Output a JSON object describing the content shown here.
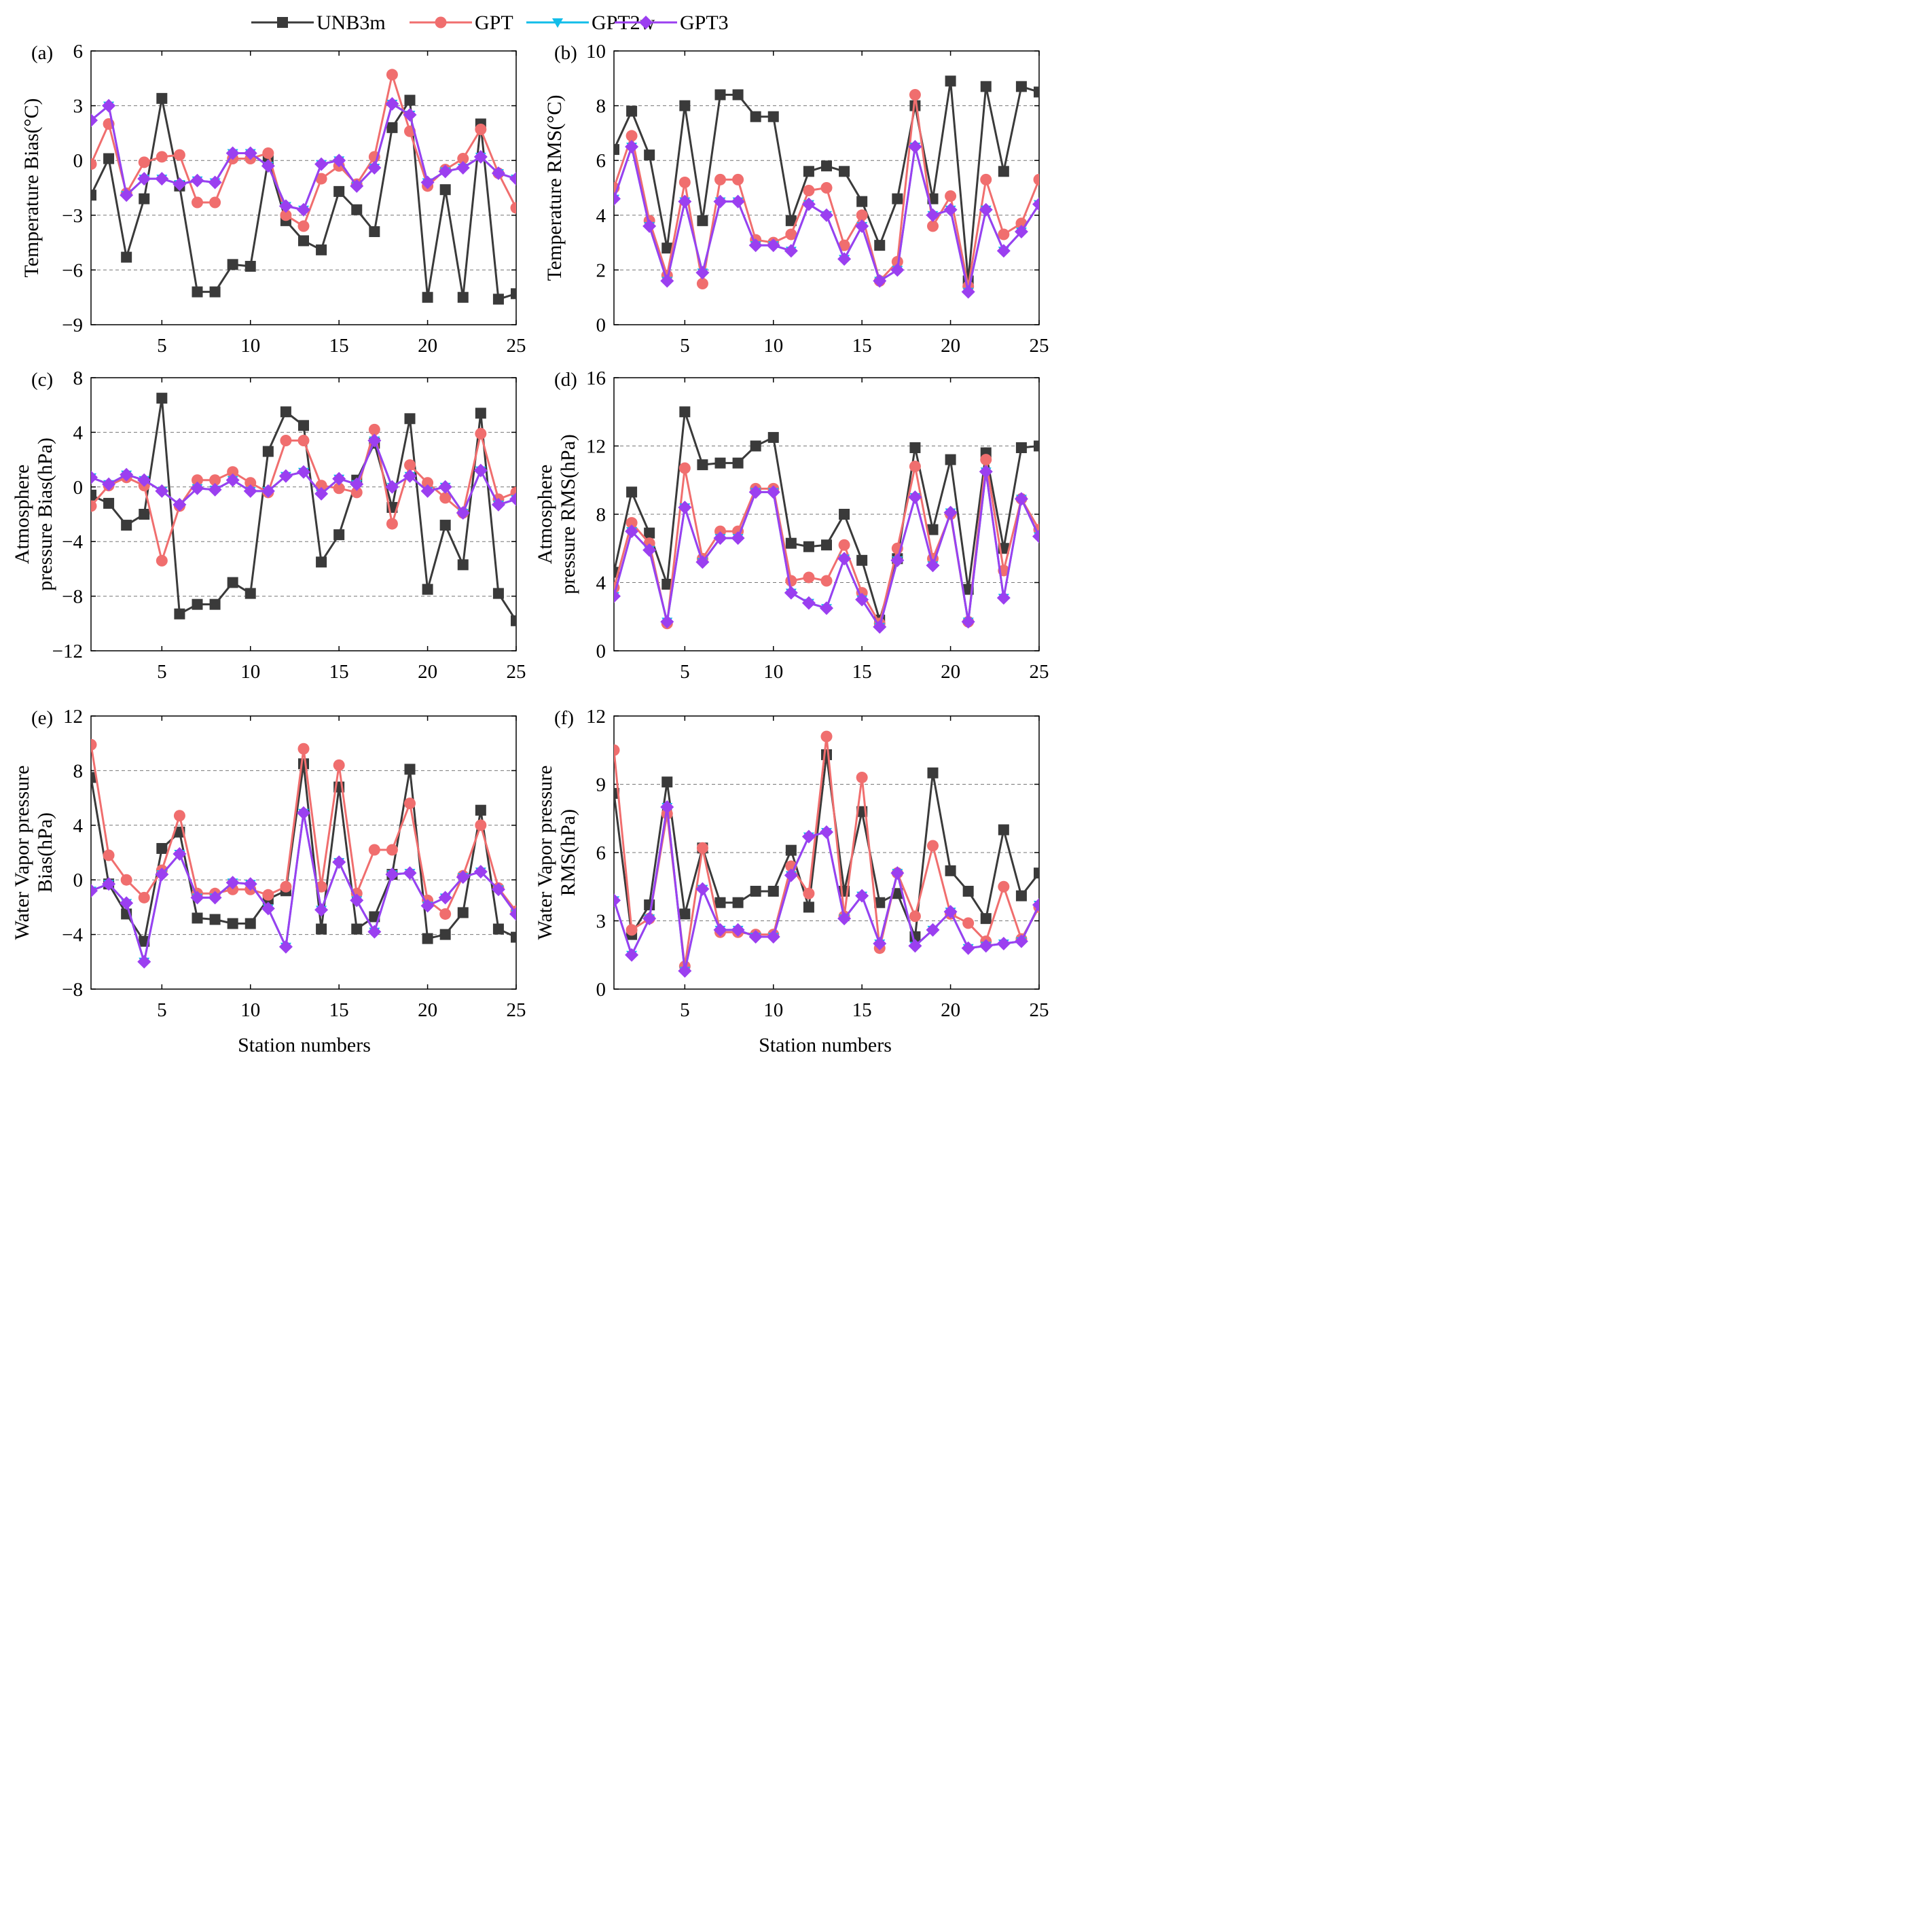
{
  "legend": {
    "items": [
      {
        "name": "UNB3m",
        "color": "#3a3a3a",
        "marker": "square"
      },
      {
        "name": "GPT",
        "color": "#f06e6e",
        "marker": "circle"
      },
      {
        "name": "GPT2w",
        "color": "#12bde9",
        "marker": "triangle-down"
      },
      {
        "name": "GPT3",
        "color": "#9b3ff0",
        "marker": "diamond"
      }
    ]
  },
  "x_label": "Station numbers",
  "chart_data": [
    {
      "type": "line",
      "panel": "(a)",
      "ylabel": "Temperature Bias(°C)",
      "xlim": [
        1,
        25
      ],
      "ylim": [
        -9,
        6
      ],
      "xticks": [
        5,
        10,
        15,
        20,
        25
      ],
      "yticks": [
        -9,
        -6,
        -3,
        0,
        3,
        6
      ],
      "ytick_labels": [
        "−9",
        "−6",
        "−3",
        "0",
        "3",
        "6"
      ],
      "grid_y": [
        -6,
        -3,
        0,
        3
      ],
      "x": [
        1,
        2,
        3,
        4,
        5,
        6,
        7,
        8,
        9,
        10,
        11,
        12,
        13,
        14,
        15,
        16,
        17,
        18,
        19,
        20,
        21,
        22,
        23,
        24,
        25
      ],
      "series": [
        {
          "name": "UNB3m",
          "values": [
            -1.9,
            0.1,
            -5.3,
            -2.1,
            3.4,
            -1.4,
            -7.2,
            -7.2,
            -5.7,
            -5.8,
            0.0,
            -3.3,
            -4.4,
            -4.9,
            -1.7,
            -2.7,
            -3.9,
            1.8,
            3.3,
            -7.5,
            -1.6,
            -7.5,
            2.0,
            -7.6,
            -7.3
          ]
        },
        {
          "name": "GPT",
          "values": [
            -0.2,
            2.0,
            -1.8,
            -0.1,
            0.2,
            0.3,
            -2.3,
            -2.3,
            0.1,
            0.1,
            0.4,
            -3.0,
            -3.6,
            -1.0,
            -0.3,
            -1.3,
            0.2,
            4.7,
            1.6,
            -1.4,
            -0.5,
            0.1,
            1.7,
            -0.7,
            -2.6
          ]
        },
        {
          "name": "GPT2w",
          "values": [
            2.2,
            3.0,
            -1.9,
            -1.0,
            -1.0,
            -1.3,
            -1.1,
            -1.2,
            0.4,
            0.4,
            -0.3,
            -2.5,
            -2.7,
            -0.2,
            0.0,
            -1.4,
            -0.4,
            3.1,
            2.5,
            -1.2,
            -0.6,
            -0.4,
            0.2,
            -0.7,
            -1.0
          ]
        },
        {
          "name": "GPT3",
          "values": [
            2.2,
            3.0,
            -1.9,
            -1.0,
            -1.0,
            -1.3,
            -1.1,
            -1.2,
            0.4,
            0.4,
            -0.3,
            -2.5,
            -2.7,
            -0.2,
            0.0,
            -1.4,
            -0.4,
            3.1,
            2.5,
            -1.2,
            -0.6,
            -0.4,
            0.2,
            -0.7,
            -1.0
          ]
        }
      ]
    },
    {
      "type": "line",
      "panel": "(b)",
      "ylabel": "Temperature RMS(°C)",
      "xlim": [
        1,
        25
      ],
      "ylim": [
        0,
        10
      ],
      "xticks": [
        5,
        10,
        15,
        20,
        25
      ],
      "yticks": [
        0,
        2,
        4,
        6,
        8,
        10
      ],
      "ytick_labels": [
        "0",
        "2",
        "4",
        "6",
        "8",
        "10"
      ],
      "grid_y": [
        2,
        4,
        6,
        8
      ],
      "x": [
        1,
        2,
        3,
        4,
        5,
        6,
        7,
        8,
        9,
        10,
        11,
        12,
        13,
        14,
        15,
        16,
        17,
        18,
        19,
        20,
        21,
        22,
        23,
        24,
        25
      ],
      "series": [
        {
          "name": "UNB3m",
          "values": [
            6.4,
            7.8,
            6.2,
            2.8,
            8.0,
            3.8,
            8.4,
            8.4,
            7.6,
            7.6,
            3.8,
            5.6,
            5.8,
            5.6,
            4.5,
            2.9,
            4.6,
            8.0,
            4.6,
            8.9,
            1.6,
            8.7,
            5.6,
            8.7,
            8.5
          ]
        },
        {
          "name": "GPT",
          "values": [
            5.0,
            6.9,
            3.8,
            1.8,
            5.2,
            1.5,
            5.3,
            5.3,
            3.1,
            3.0,
            3.3,
            4.9,
            5.0,
            2.9,
            4.0,
            1.6,
            2.3,
            8.4,
            3.6,
            4.7,
            1.4,
            5.3,
            3.3,
            3.7,
            5.3
          ]
        },
        {
          "name": "GPT2w",
          "values": [
            4.6,
            6.5,
            3.6,
            1.6,
            4.5,
            1.9,
            4.5,
            4.5,
            2.9,
            2.9,
            2.7,
            4.4,
            4.0,
            2.4,
            3.6,
            1.6,
            2.0,
            6.5,
            4.0,
            4.2,
            1.2,
            4.2,
            2.7,
            3.4,
            4.4
          ]
        },
        {
          "name": "GPT3",
          "values": [
            4.6,
            6.5,
            3.6,
            1.6,
            4.5,
            1.9,
            4.5,
            4.5,
            2.9,
            2.9,
            2.7,
            4.4,
            4.0,
            2.4,
            3.6,
            1.6,
            2.0,
            6.5,
            4.0,
            4.2,
            1.2,
            4.2,
            2.7,
            3.4,
            4.4
          ]
        }
      ]
    },
    {
      "type": "line",
      "panel": "(c)",
      "ylabel_lines": [
        "Atmosphere",
        "pressure Bias(hPa)"
      ],
      "xlim": [
        1,
        25
      ],
      "ylim": [
        -12,
        8
      ],
      "xticks": [
        5,
        10,
        15,
        20,
        25
      ],
      "yticks": [
        -12,
        -8,
        -4,
        0,
        4,
        8
      ],
      "ytick_labels": [
        "−12",
        "−8",
        "−4",
        "0",
        "4",
        "8"
      ],
      "grid_y": [
        -8,
        -4,
        0,
        4
      ],
      "x": [
        1,
        2,
        3,
        4,
        5,
        6,
        7,
        8,
        9,
        10,
        11,
        12,
        13,
        14,
        15,
        16,
        17,
        18,
        19,
        20,
        21,
        22,
        23,
        24,
        25
      ],
      "series": [
        {
          "name": "UNB3m",
          "values": [
            -0.6,
            -1.2,
            -2.8,
            -2.0,
            6.5,
            -9.3,
            -8.6,
            -8.6,
            -7.0,
            -7.8,
            2.6,
            5.5,
            4.5,
            -5.5,
            -3.5,
            0.5,
            3.2,
            -1.5,
            5.0,
            -7.5,
            -2.8,
            -5.7,
            5.4,
            -7.8,
            -9.8
          ]
        },
        {
          "name": "GPT",
          "values": [
            -1.4,
            0.1,
            0.7,
            0.1,
            -5.4,
            -1.4,
            0.5,
            0.5,
            1.1,
            0.3,
            -0.4,
            3.4,
            3.4,
            0.1,
            -0.1,
            -0.4,
            4.2,
            -2.7,
            1.6,
            0.3,
            -0.8,
            -1.9,
            3.9,
            -0.9,
            -0.4
          ]
        },
        {
          "name": "GPT2w",
          "values": [
            0.7,
            0.2,
            0.9,
            0.5,
            -0.3,
            -1.3,
            -0.1,
            -0.2,
            0.5,
            -0.3,
            -0.3,
            0.8,
            1.1,
            -0.5,
            0.6,
            0.2,
            3.4,
            0.0,
            0.8,
            -0.3,
            0.0,
            -1.9,
            1.2,
            -1.3,
            -0.9
          ]
        },
        {
          "name": "GPT3",
          "values": [
            0.7,
            0.2,
            0.9,
            0.5,
            -0.3,
            -1.3,
            -0.1,
            -0.2,
            0.5,
            -0.3,
            -0.3,
            0.8,
            1.1,
            -0.5,
            0.6,
            0.2,
            3.4,
            0.0,
            0.8,
            -0.3,
            0.0,
            -1.9,
            1.2,
            -1.3,
            -0.9
          ]
        }
      ]
    },
    {
      "type": "line",
      "panel": "(d)",
      "ylabel_lines": [
        "Atmosphere",
        "pressure RMS(hPa)"
      ],
      "xlim": [
        1,
        25
      ],
      "ylim": [
        0,
        16
      ],
      "xticks": [
        5,
        10,
        15,
        20,
        25
      ],
      "yticks": [
        0,
        4,
        8,
        12,
        16
      ],
      "ytick_labels": [
        "0",
        "4",
        "8",
        "12",
        "16"
      ],
      "grid_y": [
        4,
        8,
        12
      ],
      "x": [
        1,
        2,
        3,
        4,
        5,
        6,
        7,
        8,
        9,
        10,
        11,
        12,
        13,
        14,
        15,
        16,
        17,
        18,
        19,
        20,
        21,
        22,
        23,
        24,
        25
      ],
      "series": [
        {
          "name": "UNB3m",
          "values": [
            4.6,
            9.3,
            6.9,
            3.9,
            14.0,
            10.9,
            11.0,
            11.0,
            12.0,
            12.5,
            6.3,
            6.1,
            6.2,
            8.0,
            5.3,
            1.8,
            5.4,
            11.9,
            7.1,
            11.2,
            3.6,
            11.6,
            6.0,
            11.9,
            12.0
          ]
        },
        {
          "name": "GPT",
          "values": [
            3.7,
            7.5,
            6.3,
            1.6,
            10.7,
            5.4,
            7.0,
            7.0,
            9.5,
            9.5,
            4.1,
            4.3,
            4.1,
            6.2,
            3.4,
            1.6,
            6.0,
            10.8,
            5.4,
            8.0,
            1.7,
            11.2,
            4.7,
            8.9,
            7.1
          ]
        },
        {
          "name": "GPT2w",
          "values": [
            3.2,
            7.0,
            5.9,
            1.7,
            8.4,
            5.2,
            6.6,
            6.6,
            9.3,
            9.3,
            3.4,
            2.8,
            2.5,
            5.4,
            3.0,
            1.4,
            5.3,
            9.0,
            5.0,
            8.1,
            1.7,
            10.5,
            3.1,
            8.9,
            6.7
          ]
        },
        {
          "name": "GPT3",
          "values": [
            3.2,
            7.0,
            5.9,
            1.7,
            8.4,
            5.2,
            6.6,
            6.6,
            9.3,
            9.3,
            3.4,
            2.8,
            2.5,
            5.4,
            3.0,
            1.4,
            5.3,
            9.0,
            5.0,
            8.1,
            1.7,
            10.5,
            3.1,
            8.9,
            6.7
          ]
        }
      ]
    },
    {
      "type": "line",
      "panel": "(e)",
      "ylabel_lines": [
        "Water Vapor pressure",
        "Bias(hPa)"
      ],
      "xlim": [
        1,
        25
      ],
      "ylim": [
        -8,
        12
      ],
      "xticks": [
        5,
        10,
        15,
        20,
        25
      ],
      "yticks": [
        -8,
        -4,
        0,
        4,
        8,
        12
      ],
      "ytick_labels": [
        "−8",
        "−4",
        "0",
        "4",
        "8",
        "12"
      ],
      "grid_y": [
        -4,
        0,
        4,
        8
      ],
      "x": [
        1,
        2,
        3,
        4,
        5,
        6,
        7,
        8,
        9,
        10,
        11,
        12,
        13,
        14,
        15,
        16,
        17,
        18,
        19,
        20,
        21,
        22,
        23,
        24,
        25
      ],
      "series": [
        {
          "name": "UNB3m",
          "values": [
            7.5,
            -0.3,
            -2.5,
            -4.5,
            2.3,
            3.5,
            -2.8,
            -2.9,
            -3.2,
            -3.2,
            -1.4,
            -0.8,
            8.5,
            -3.6,
            6.8,
            -3.6,
            -2.7,
            0.4,
            8.1,
            -4.3,
            -4.0,
            -2.4,
            5.1,
            -3.6,
            -4.2
          ]
        },
        {
          "name": "GPT",
          "values": [
            9.9,
            1.8,
            0.0,
            -1.3,
            0.7,
            4.7,
            -1.0,
            -1.0,
            -0.7,
            -0.7,
            -1.1,
            -0.5,
            9.6,
            -0.5,
            8.4,
            -1.0,
            2.2,
            2.2,
            5.6,
            -1.5,
            -2.5,
            0.3,
            4.0,
            -0.6,
            -2.3
          ]
        },
        {
          "name": "GPT2w",
          "values": [
            -0.8,
            -0.3,
            -1.7,
            -6.0,
            0.4,
            1.9,
            -1.3,
            -1.3,
            -0.2,
            -0.3,
            -2.1,
            -4.9,
            4.9,
            -2.2,
            1.3,
            -1.5,
            -3.8,
            0.4,
            0.5,
            -1.9,
            -1.3,
            0.2,
            0.6,
            -0.7,
            -2.5
          ]
        },
        {
          "name": "GPT3",
          "values": [
            -0.8,
            -0.3,
            -1.7,
            -6.0,
            0.4,
            1.9,
            -1.3,
            -1.3,
            -0.2,
            -0.3,
            -2.1,
            -4.9,
            4.9,
            -2.2,
            1.3,
            -1.5,
            -3.8,
            0.4,
            0.5,
            -1.9,
            -1.3,
            0.2,
            0.6,
            -0.7,
            -2.5
          ]
        }
      ]
    },
    {
      "type": "line",
      "panel": "(f)",
      "ylabel_lines": [
        "Water Vapor pressure",
        "RMS(hPa)"
      ],
      "xlim": [
        1,
        25
      ],
      "ylim": [
        0,
        12
      ],
      "xticks": [
        5,
        10,
        15,
        20,
        25
      ],
      "yticks": [
        0,
        3,
        6,
        9,
        12
      ],
      "ytick_labels": [
        "0",
        "3",
        "6",
        "9",
        "12"
      ],
      "grid_y": [
        3,
        6,
        9
      ],
      "x": [
        1,
        2,
        3,
        4,
        5,
        6,
        7,
        8,
        9,
        10,
        11,
        12,
        13,
        14,
        15,
        16,
        17,
        18,
        19,
        20,
        21,
        22,
        23,
        24,
        25
      ],
      "series": [
        {
          "name": "UNB3m",
          "values": [
            8.6,
            2.4,
            3.7,
            9.1,
            3.3,
            6.2,
            3.8,
            3.8,
            4.3,
            4.3,
            6.1,
            3.6,
            10.3,
            4.3,
            7.8,
            3.8,
            4.2,
            2.3,
            9.5,
            5.2,
            4.3,
            3.1,
            7.0,
            4.1,
            5.1
          ]
        },
        {
          "name": "GPT",
          "values": [
            10.5,
            2.6,
            3.1,
            7.7,
            1.0,
            6.2,
            2.5,
            2.5,
            2.4,
            2.4,
            5.4,
            4.2,
            11.1,
            3.2,
            9.3,
            1.8,
            5.1,
            3.2,
            6.3,
            3.3,
            2.9,
            2.1,
            4.5,
            2.2,
            3.6
          ]
        },
        {
          "name": "GPT2w",
          "values": [
            3.9,
            1.5,
            3.1,
            8.0,
            0.8,
            4.4,
            2.6,
            2.6,
            2.3,
            2.3,
            5.0,
            6.7,
            6.9,
            3.1,
            4.1,
            2.0,
            5.1,
            1.9,
            2.6,
            3.4,
            1.8,
            1.9,
            2.0,
            2.1,
            3.7
          ]
        },
        {
          "name": "GPT3",
          "values": [
            3.9,
            1.5,
            3.1,
            8.0,
            0.8,
            4.4,
            2.6,
            2.6,
            2.3,
            2.3,
            5.0,
            6.7,
            6.9,
            3.1,
            4.1,
            2.0,
            5.1,
            1.9,
            2.6,
            3.4,
            1.8,
            1.9,
            2.0,
            2.1,
            3.7
          ]
        }
      ]
    }
  ]
}
